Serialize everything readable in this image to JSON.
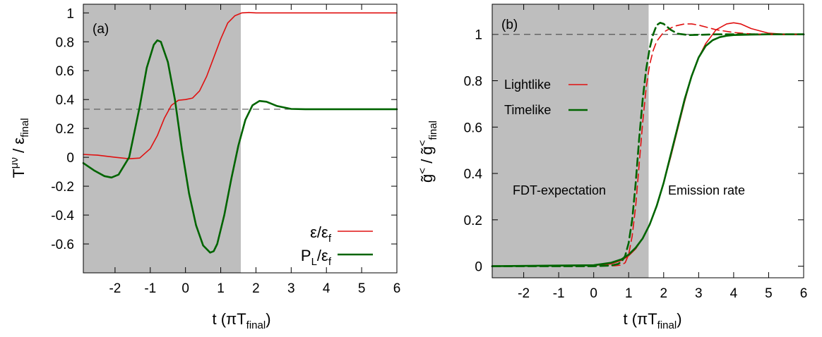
{
  "chart_data": [
    {
      "type": "line",
      "panel_label": "(a)",
      "xlabel": "t (πT_final)",
      "ylabel": "T^μν / ε_final",
      "xlim": [
        -2.9,
        6
      ],
      "ylim": [
        -0.8,
        1.06
      ],
      "xticks": [
        -2,
        -1,
        0,
        1,
        2,
        3,
        4,
        5,
        6
      ],
      "yticks": [
        -0.6,
        -0.4,
        -0.2,
        0,
        0.2,
        0.4,
        0.6,
        0.8,
        1
      ],
      "shaded_region": {
        "x": [
          -2.9,
          1.57
        ],
        "color": "#bebebe"
      },
      "reference_line": {
        "y": 0.333,
        "style": "dashed",
        "color": "#555555"
      },
      "legend_position": "bottom-right",
      "series": [
        {
          "name": "ε/ε_f",
          "color": "#e01010",
          "style": "solid",
          "x": [
            -2.9,
            -2.5,
            -2.0,
            -1.6,
            -1.3,
            -1.0,
            -0.8,
            -0.6,
            -0.4,
            -0.2,
            0.0,
            0.2,
            0.4,
            0.6,
            0.8,
            1.0,
            1.2,
            1.4,
            1.6,
            1.8,
            2.0,
            2.5,
            3.0,
            4.0,
            5.0,
            6.0
          ],
          "y": [
            0.02,
            0.015,
            0.0,
            -0.01,
            -0.005,
            0.06,
            0.15,
            0.27,
            0.36,
            0.395,
            0.4,
            0.41,
            0.46,
            0.56,
            0.69,
            0.82,
            0.93,
            0.98,
            1.0,
            1.003,
            1.0,
            1.0,
            1.0,
            1.0,
            1.0,
            1.0
          ]
        },
        {
          "name": "P_L/ε_f",
          "color": "#006400",
          "style": "solid",
          "x": [
            -2.9,
            -2.6,
            -2.3,
            -2.1,
            -1.9,
            -1.6,
            -1.3,
            -1.1,
            -0.9,
            -0.8,
            -0.7,
            -0.5,
            -0.3,
            -0.1,
            0.1,
            0.3,
            0.5,
            0.7,
            0.8,
            0.9,
            1.1,
            1.3,
            1.5,
            1.7,
            1.9,
            2.1,
            2.3,
            2.6,
            3.0,
            3.4,
            4.0,
            5.0,
            6.0
          ],
          "y": [
            -0.04,
            -0.09,
            -0.13,
            -0.14,
            -0.12,
            0.0,
            0.35,
            0.62,
            0.78,
            0.81,
            0.8,
            0.66,
            0.4,
            0.05,
            -0.25,
            -0.47,
            -0.61,
            -0.66,
            -0.65,
            -0.6,
            -0.4,
            -0.15,
            0.08,
            0.26,
            0.36,
            0.39,
            0.385,
            0.355,
            0.335,
            0.333,
            0.333,
            0.333,
            0.333
          ]
        }
      ]
    },
    {
      "type": "line",
      "panel_label": "(b)",
      "xlabel": "t (πT_final)",
      "ylabel": "g̃< / g̃<_final",
      "xlim": [
        -2.9,
        6
      ],
      "ylim": [
        -0.05,
        1.13
      ],
      "xticks": [
        -2,
        -1,
        0,
        1,
        2,
        3,
        4,
        5,
        6
      ],
      "yticks": [
        0,
        0.2,
        0.4,
        0.6,
        0.8,
        1
      ],
      "shaded_region": {
        "x": [
          -2.9,
          1.57
        ],
        "color": "#bebebe"
      },
      "reference_line": {
        "y": 1.0,
        "style": "dashed",
        "color": "#555555"
      },
      "legend_position": "top-left",
      "annotations": [
        "FDT-expectation",
        "Emission rate"
      ],
      "series": [
        {
          "name": "Lightlike",
          "color": "#e01010",
          "style": "solid",
          "x": [
            -2.9,
            0.0,
            0.5,
            0.8,
            1.0,
            1.2,
            1.4,
            1.6,
            1.8,
            2.0,
            2.2,
            2.4,
            2.6,
            2.8,
            3.0,
            3.2,
            3.5,
            3.8,
            4.0,
            4.2,
            4.5,
            5.0,
            5.5,
            6.0
          ],
          "y": [
            0.0,
            0.003,
            0.01,
            0.025,
            0.045,
            0.075,
            0.12,
            0.18,
            0.26,
            0.36,
            0.47,
            0.59,
            0.71,
            0.82,
            0.9,
            0.96,
            1.02,
            1.045,
            1.05,
            1.045,
            1.025,
            1.005,
            1.0,
            1.0
          ]
        },
        {
          "name": "Timelike",
          "color": "#006400",
          "style": "solid",
          "x": [
            -2.9,
            0.0,
            0.5,
            0.8,
            1.0,
            1.2,
            1.4,
            1.6,
            1.8,
            2.0,
            2.2,
            2.4,
            2.6,
            2.8,
            3.0,
            3.2,
            3.4,
            3.6,
            3.8,
            4.0,
            4.5,
            5.0,
            6.0
          ],
          "y": [
            0.0,
            0.004,
            0.015,
            0.03,
            0.05,
            0.08,
            0.12,
            0.18,
            0.26,
            0.36,
            0.48,
            0.6,
            0.72,
            0.82,
            0.9,
            0.95,
            0.975,
            0.988,
            0.994,
            0.997,
            0.999,
            1.0,
            1.0
          ]
        },
        {
          "name": "Lightlike FDT-expectation",
          "color": "#e01010",
          "style": "dashed",
          "x": [
            -2.9,
            0.0,
            0.6,
            0.8,
            0.9,
            1.0,
            1.1,
            1.2,
            1.3,
            1.4,
            1.5,
            1.6,
            1.7,
            1.8,
            2.0,
            2.3,
            2.6,
            2.8,
            3.0,
            3.5,
            4.0,
            4.5,
            5.0,
            6.0
          ],
          "y": [
            0.0,
            0.0,
            0.002,
            0.005,
            0.015,
            0.05,
            0.13,
            0.26,
            0.44,
            0.62,
            0.77,
            0.87,
            0.93,
            0.97,
            1.01,
            1.035,
            1.045,
            1.045,
            1.04,
            1.02,
            1.008,
            1.002,
            1.0,
            1.0
          ]
        },
        {
          "name": "Timelike FDT-expectation",
          "color": "#006400",
          "style": "dashed",
          "x": [
            -2.9,
            0.0,
            0.5,
            0.7,
            0.8,
            0.9,
            1.0,
            1.1,
            1.2,
            1.3,
            1.4,
            1.5,
            1.6,
            1.7,
            1.8,
            1.9,
            2.0,
            2.2,
            2.4,
            2.7,
            3.0,
            3.5,
            4.0,
            6.0
          ],
          "y": [
            0.0,
            0.0,
            0.003,
            0.01,
            0.02,
            0.045,
            0.1,
            0.2,
            0.36,
            0.55,
            0.72,
            0.85,
            0.94,
            1.0,
            1.04,
            1.05,
            1.045,
            1.02,
            1.003,
            0.997,
            0.998,
            1.0,
            1.0,
            1.0
          ]
        }
      ]
    }
  ]
}
